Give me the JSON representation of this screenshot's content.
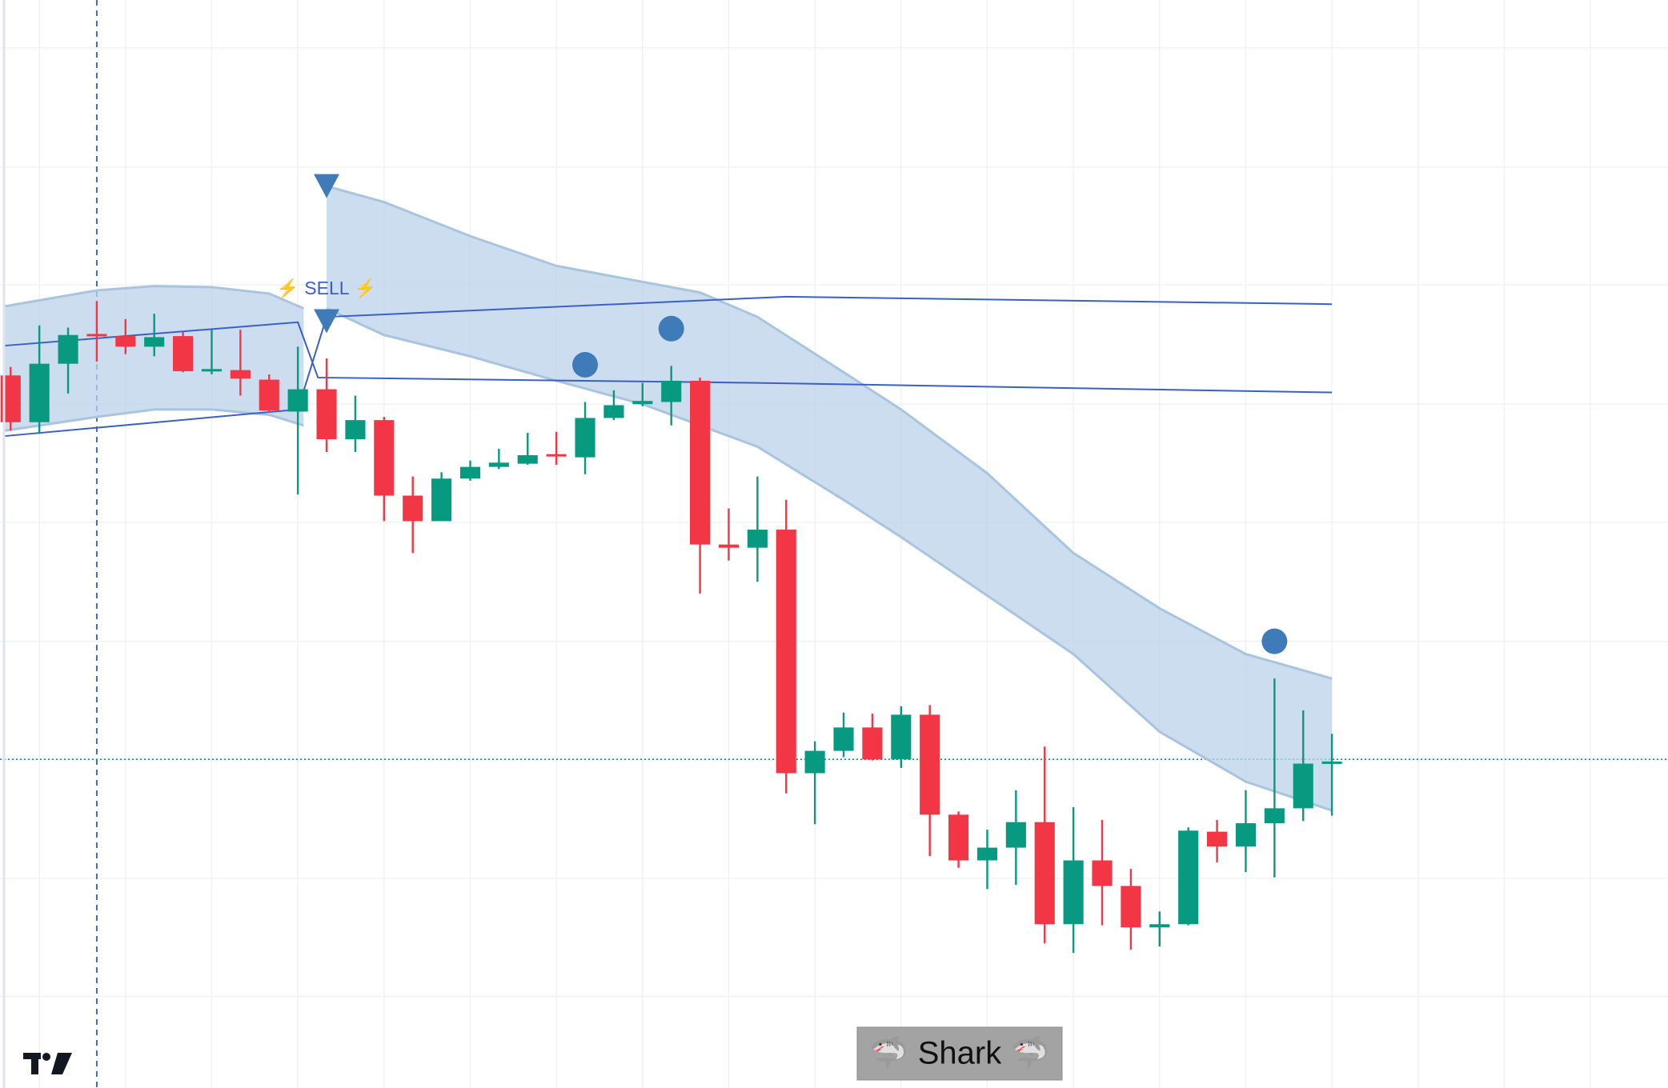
{
  "chart_data": {
    "type": "candlestick",
    "xlim": [
      -0.37,
      57.7
    ],
    "ylim": [
      0,
      1023
    ],
    "xticks": [
      1,
      4,
      7,
      10,
      13,
      16,
      19,
      22,
      25,
      28,
      31,
      34,
      37,
      40,
      43,
      46,
      49,
      52,
      55
    ],
    "yticks": [
      86,
      197,
      309,
      420,
      532,
      643,
      755,
      866,
      978
    ],
    "grid": true,
    "up_color": "#089981",
    "down_color": "#f23645",
    "open": [
      670,
      626,
      681,
      709,
      707,
      697,
      707,
      674,
      675,
      666,
      636,
      657,
      610,
      628,
      557,
      533,
      573,
      584,
      587,
      596,
      593,
      630,
      643,
      645,
      665,
      511,
      508,
      525,
      296,
      317,
      339,
      309,
      351,
      257,
      214,
      226,
      250,
      154,
      214,
      190,
      151,
      154,
      241,
      227,
      249,
      263,
      305
    ],
    "high": [
      678,
      717,
      715,
      740,
      723,
      728,
      711,
      713,
      713,
      671,
      697,
      686,
      651,
      631,
      575,
      579,
      590,
      601,
      616,
      617,
      645,
      656,
      663,
      679,
      668,
      545,
      575,
      553,
      326,
      353,
      352,
      359,
      360,
      260,
      243,
      280,
      321,
      264,
      252,
      206,
      166,
      245,
      252,
      280,
      385,
      355,
      333
    ],
    "low": [
      618,
      615,
      653,
      683,
      690,
      688,
      673,
      671,
      651,
      635,
      558,
      598,
      598,
      533,
      503,
      533,
      571,
      582,
      586,
      586,
      577,
      628,
      641,
      623,
      465,
      496,
      476,
      277,
      248,
      311,
      308,
      301,
      218,
      207,
      187,
      191,
      136,
      127,
      153,
      130,
      133,
      153,
      212,
      203,
      198,
      251,
      256
    ],
    "close": [
      626,
      681,
      708,
      707,
      697,
      706,
      674,
      676,
      667,
      637,
      657,
      610,
      628,
      557,
      533,
      573,
      584,
      588,
      595,
      595,
      630,
      642,
      646,
      665,
      511,
      508,
      525,
      296,
      317,
      339,
      309,
      351,
      257,
      214,
      226,
      250,
      154,
      214,
      190,
      151,
      154,
      242,
      227,
      249,
      263,
      305,
      307
    ],
    "bands": [
      {
        "color": "#b9d1e8",
        "x": [
          -0.2,
          3,
          5,
          7,
          9,
          10.2
        ],
        "upper": [
          735,
          750,
          754,
          753,
          747,
          733
        ],
        "lower": [
          618,
          631,
          638,
          638,
          633,
          623
        ]
      },
      {
        "color": "#b9d1e8",
        "x": [
          11,
          13,
          16,
          19,
          22,
          24,
          26,
          29,
          31,
          34,
          37,
          40,
          43,
          46
        ],
        "upper": [
          848,
          833,
          801,
          773,
          758,
          748,
          725,
          673,
          638,
          578,
          503,
          451,
          408,
          385
        ],
        "lower": [
          733,
          708,
          688,
          665,
          643,
          623,
          603,
          553,
          518,
          463,
          408,
          335,
          288,
          261
        ]
      }
    ],
    "lines": [
      {
        "color": "#3b5fc9",
        "x": [
          -0.2,
          10,
          10.7,
          26,
          46
        ],
        "values": [
          698,
          720,
          668,
          663,
          654
        ]
      },
      {
        "color": "#3b5fc9",
        "x": [
          -0.2,
          10,
          11,
          27,
          46
        ],
        "values": [
          613,
          638,
          725,
          744,
          737
        ]
      }
    ],
    "markers": [
      {
        "shape": "triangle-down",
        "x": 11,
        "value": 848,
        "color": "#3f7bb8"
      },
      {
        "shape": "triangle-down",
        "x": 11,
        "value": 721,
        "color": "#3f7bb8"
      },
      {
        "shape": "circle",
        "x": 20,
        "value": 680,
        "color": "#3f7bb8"
      },
      {
        "shape": "circle",
        "x": 23,
        "value": 714,
        "color": "#3f7bb8"
      },
      {
        "shape": "circle",
        "x": 44,
        "value": 420,
        "color": "#3f7bb8"
      }
    ],
    "price_line": 309,
    "crosshair_x": 3,
    "sell_label": "⚡ SELL ⚡",
    "badge": "🦈 Shark 🦈"
  }
}
